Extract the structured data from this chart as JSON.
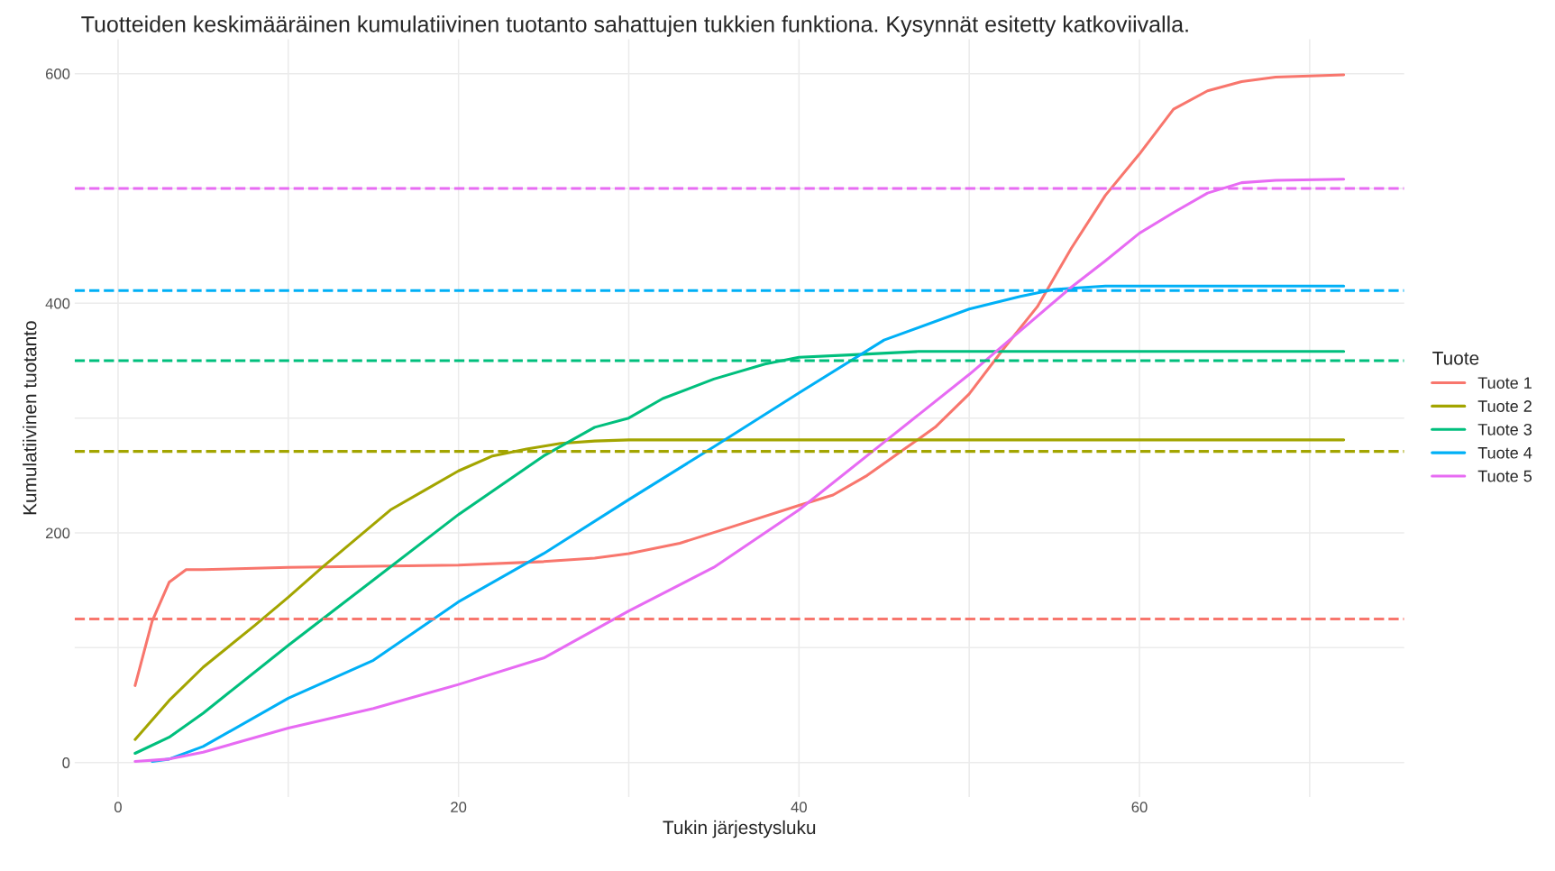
{
  "chart_data": {
    "type": "line",
    "title": "Tuotteiden keskimääräinen kumulatiivinen tuotanto sahattujen tukkien funktiona. Kysynnät esitetty katkoviivalla.",
    "xlabel": "Tukin järjestysluku",
    "ylabel": "Kumulatiivinen tuotanto",
    "legend_title": "Tuote",
    "series": [
      {
        "name": "Tuote 1",
        "color": "#f8766d",
        "x": [
          1,
          2,
          3,
          4,
          5,
          10,
          20,
          25,
          28,
          30,
          33,
          36,
          40,
          42,
          44,
          46,
          48,
          50,
          52,
          54,
          56,
          58,
          60,
          62,
          64,
          66,
          68,
          72
        ],
        "values": [
          67,
          123,
          157,
          168,
          168,
          170,
          172,
          175,
          178,
          182,
          191,
          205,
          224,
          233,
          250,
          271,
          292,
          321,
          360,
          397,
          448,
          494,
          530,
          569,
          585,
          593,
          597,
          599
        ]
      },
      {
        "name": "Tuote 2",
        "color": "#a3a500",
        "x": [
          1,
          3,
          5,
          8,
          10,
          12,
          14,
          16,
          18,
          20,
          22,
          24,
          26,
          28,
          30,
          72
        ],
        "values": [
          20,
          54,
          83,
          119,
          144,
          170,
          195,
          220,
          237,
          254,
          267,
          273,
          278,
          280,
          281,
          281
        ]
      },
      {
        "name": "Tuote 3",
        "color": "#00bf7d",
        "x": [
          1,
          3,
          5,
          10,
          15,
          20,
          25,
          28,
          30,
          32,
          35,
          38,
          40,
          43,
          47,
          72
        ],
        "values": [
          8,
          22,
          43,
          102,
          159,
          216,
          267,
          292,
          300,
          317,
          334,
          347,
          353,
          355,
          358,
          358
        ]
      },
      {
        "name": "Tuote 4",
        "color": "#00b0f6",
        "x": [
          2,
          3,
          5,
          10,
          15,
          20,
          25,
          30,
          35,
          40,
          45,
          50,
          53,
          55,
          58,
          72
        ],
        "values": [
          1,
          3,
          14,
          56,
          89,
          140,
          182,
          229,
          275,
          322,
          368,
          395,
          406,
          412,
          415,
          415
        ]
      },
      {
        "name": "Tuote 5",
        "color": "#e76bf3",
        "x": [
          1,
          3,
          5,
          10,
          15,
          20,
          25,
          30,
          35,
          40,
          45,
          50,
          53,
          56,
          58,
          60,
          62,
          64,
          66,
          68,
          72
        ],
        "values": [
          1,
          3,
          9,
          30,
          47,
          68,
          91,
          132,
          170,
          220,
          279,
          338,
          376,
          414,
          437,
          461,
          479,
          496,
          505,
          507,
          508
        ]
      }
    ],
    "ref_lines": [
      {
        "axis": "y",
        "value": 125,
        "color": "#f8766d",
        "line_style": "dashed"
      },
      {
        "axis": "y",
        "value": 271,
        "color": "#a3a500",
        "line_style": "dashed"
      },
      {
        "axis": "y",
        "value": 350,
        "color": "#00bf7d",
        "line_style": "dashed"
      },
      {
        "axis": "y",
        "value": 411,
        "color": "#00b0f6",
        "line_style": "dashed"
      },
      {
        "axis": "y",
        "value": 500,
        "color": "#e76bf3",
        "line_style": "dashed"
      }
    ],
    "xlim": [
      -2.55,
      75.55
    ],
    "ylim": [
      -30,
      630
    ],
    "xticks": [
      0,
      {
        "value": 10,
        "label": null
      },
      20,
      {
        "value": 30,
        "label": null
      },
      40,
      {
        "value": 50,
        "label": null
      },
      60,
      {
        "value": 70,
        "label": null
      }
    ],
    "yticks": [
      0,
      {
        "value": 100,
        "label": null
      },
      200,
      {
        "value": 300,
        "label": null
      },
      400,
      {
        "value": 500,
        "label": null
      },
      600
    ],
    "grid": true,
    "legend": "right",
    "line_style": "solid",
    "marker": "none"
  }
}
